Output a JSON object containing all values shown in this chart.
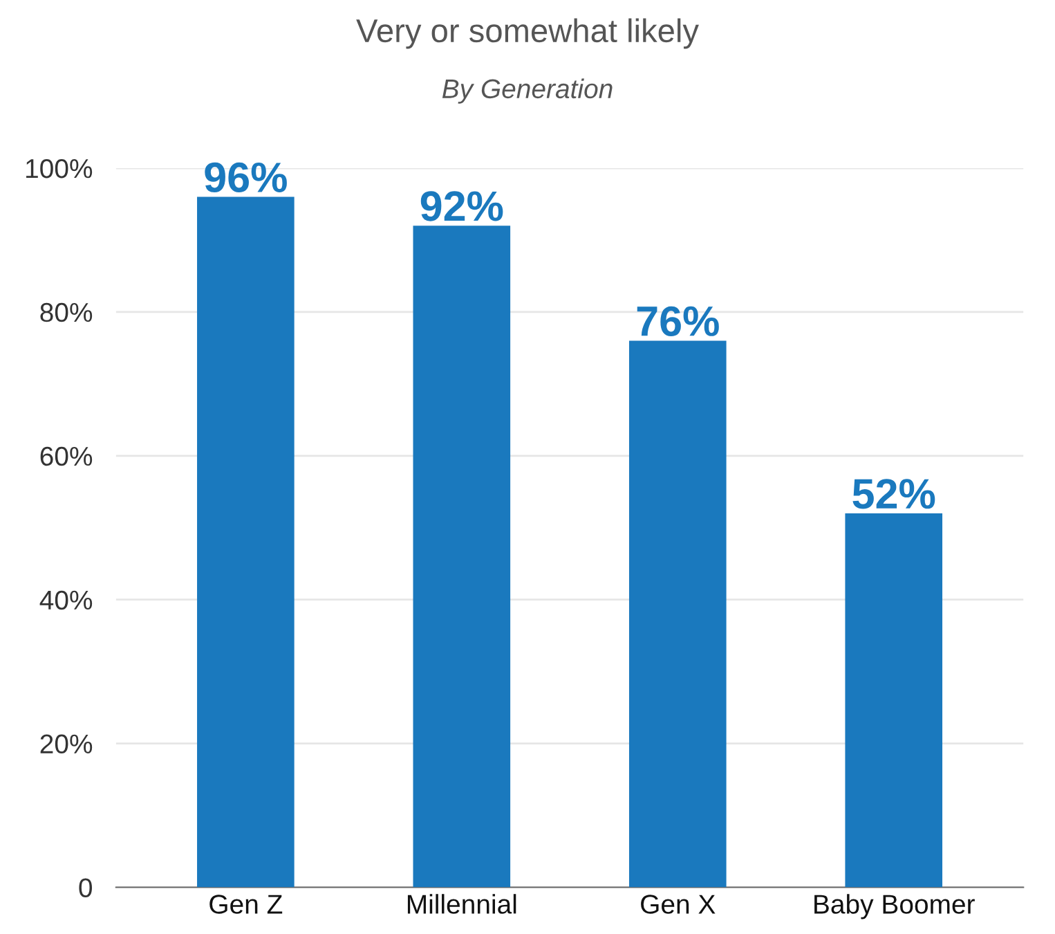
{
  "chart_data": {
    "type": "bar",
    "title": "Very or somewhat likely",
    "subtitle": "By Generation",
    "categories": [
      "Gen Z",
      "Millennial",
      "Gen X",
      "Baby Boomer"
    ],
    "values": [
      96,
      92,
      76,
      52
    ],
    "value_labels": [
      "96%",
      "92%",
      "76%",
      "52%"
    ],
    "color": "#1a79be",
    "ylim": [
      0,
      100
    ],
    "yticks": [
      {
        "value": 0,
        "label": "0"
      },
      {
        "value": 20,
        "label": "20%"
      },
      {
        "value": 40,
        "label": "40%"
      },
      {
        "value": 60,
        "label": "60%"
      },
      {
        "value": 80,
        "label": "80%"
      },
      {
        "value": 100,
        "label": "100%"
      }
    ],
    "grid": "y",
    "legend": false
  }
}
